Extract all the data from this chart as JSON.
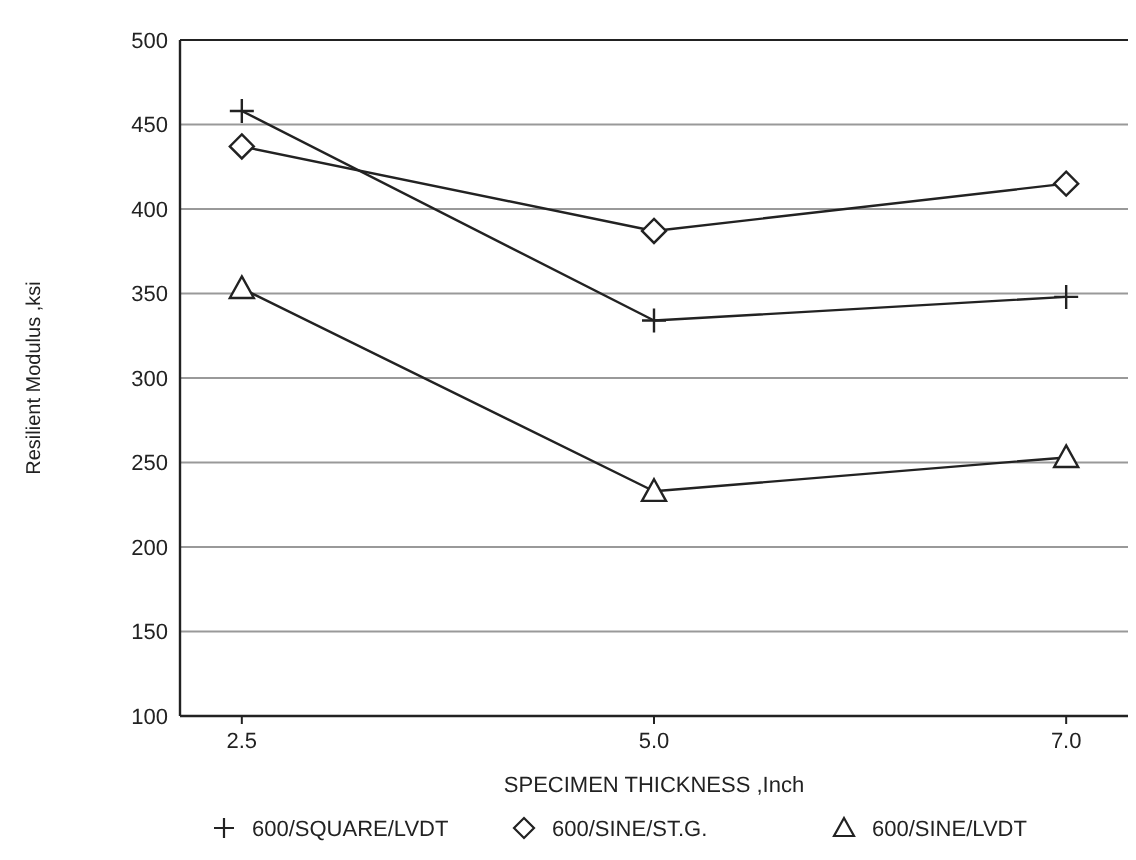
{
  "chart_data": {
    "type": "line",
    "xlabel": "SPECIMEN THICKNESS ,Inch",
    "ylabel": "Resilient Modulus ,ksi",
    "categories": [
      "2.5",
      "5.0",
      "7.0"
    ],
    "series": [
      {
        "name": "600/SQUARE/LVDT",
        "color": "#222222",
        "marker": "cross",
        "values": [
          458,
          334,
          348
        ]
      },
      {
        "name": "600/SINE/ST.G.",
        "color": "#222222",
        "marker": "diamond",
        "values": [
          437,
          387,
          415
        ]
      },
      {
        "name": "600/SINE/LVDT",
        "color": "#222222",
        "marker": "triangle",
        "values": [
          353,
          233,
          253
        ]
      }
    ],
    "ylim": [
      100,
      500
    ],
    "yticks": [
      100,
      150,
      200,
      250,
      300,
      350,
      400,
      450,
      500
    ],
    "grid": "y",
    "legend": "bottom",
    "line_style": "solid"
  }
}
